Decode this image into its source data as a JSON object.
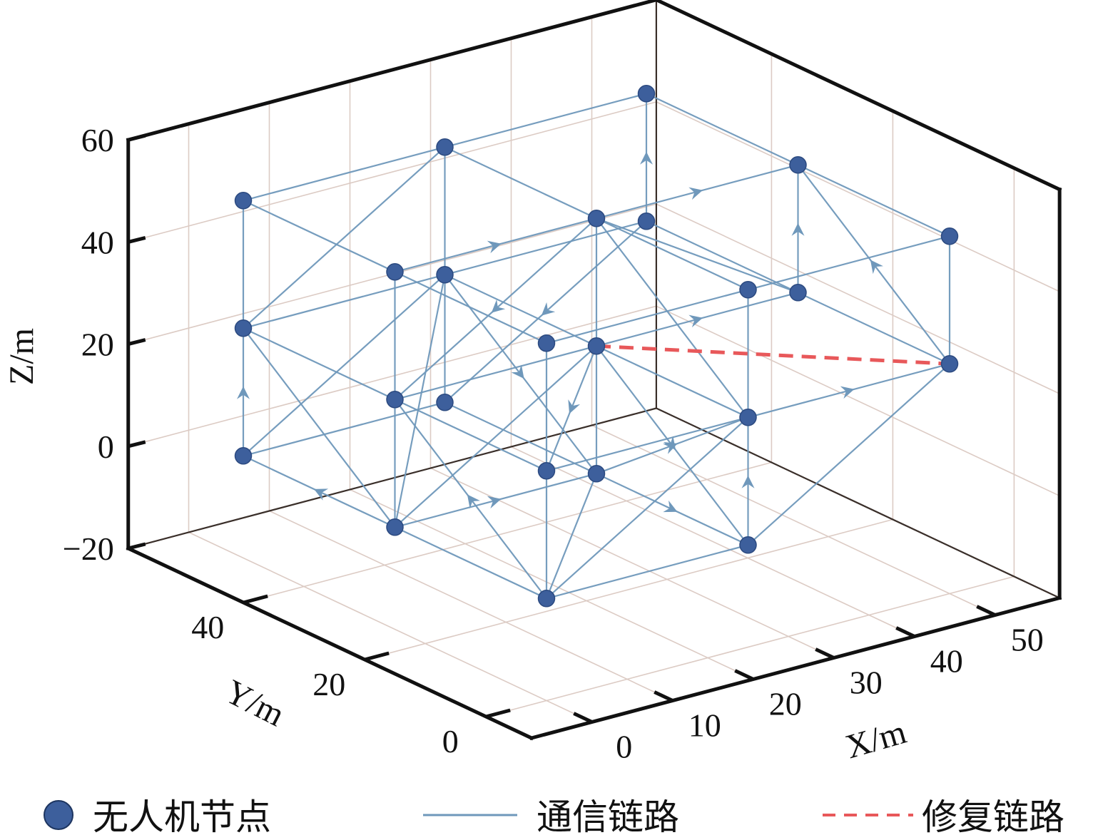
{
  "chart_data": {
    "type": "scatter",
    "projection": "3d",
    "xlabel": "X/m",
    "ylabel": "Y/m",
    "zlabel": "Z/m",
    "xlim": [
      -7.5,
      58
    ],
    "ylim": [
      -7.5,
      59
    ],
    "zlim": [
      -20,
      60
    ],
    "xticks": [
      0,
      10,
      20,
      30,
      40,
      50
    ],
    "yticks": [
      0,
      20,
      40
    ],
    "zticks": [
      -20,
      0,
      20,
      40,
      60
    ],
    "zticklabels": [
      "−20",
      "0",
      "20",
      "40",
      "60"
    ],
    "grid": true,
    "legend_position": "bottom",
    "legend": [
      {
        "label": "无人机节点",
        "kind": "marker"
      },
      {
        "label": "通信链路",
        "kind": "line"
      },
      {
        "label": "修复链路",
        "kind": "dashed"
      }
    ],
    "colors": {
      "node": "#3d5f9c",
      "link": "#6f98bb",
      "repair": "#e8585a",
      "grid": "#dccbc4",
      "axis": "#111111"
    },
    "nodes": [
      [
        0,
        0,
        0
      ],
      [
        25,
        0,
        0
      ],
      [
        0,
        25,
        0
      ],
      [
        25,
        25,
        0
      ],
      [
        0,
        50,
        0
      ],
      [
        25,
        50,
        0
      ],
      [
        0,
        0,
        25
      ],
      [
        25,
        0,
        25
      ],
      [
        50,
        0,
        25
      ],
      [
        0,
        25,
        25
      ],
      [
        25,
        25,
        25
      ],
      [
        50,
        25,
        25
      ],
      [
        0,
        50,
        25
      ],
      [
        25,
        50,
        25
      ],
      [
        50,
        50,
        25
      ],
      [
        0,
        0,
        50
      ],
      [
        25,
        0,
        50
      ],
      [
        50,
        0,
        50
      ],
      [
        0,
        25,
        50
      ],
      [
        25,
        25,
        50
      ],
      [
        50,
        25,
        50
      ],
      [
        0,
        50,
        50
      ],
      [
        25,
        50,
        50
      ],
      [
        50,
        50,
        50
      ]
    ],
    "links": [
      [
        0,
        6,
        0
      ],
      [
        6,
        15,
        0
      ],
      [
        1,
        7,
        1
      ],
      [
        7,
        16,
        0
      ],
      [
        2,
        9,
        0
      ],
      [
        9,
        18,
        0
      ],
      [
        3,
        10,
        0
      ],
      [
        10,
        19,
        0
      ],
      [
        4,
        12,
        1
      ],
      [
        12,
        21,
        0
      ],
      [
        5,
        13,
        0
      ],
      [
        13,
        22,
        0
      ],
      [
        8,
        17,
        0
      ],
      [
        11,
        20,
        1
      ],
      [
        14,
        23,
        1
      ],
      [
        2,
        4,
        1
      ],
      [
        4,
        5,
        0
      ],
      [
        2,
        3,
        1
      ],
      [
        2,
        0,
        0
      ],
      [
        0,
        1,
        0
      ],
      [
        3,
        1,
        1
      ],
      [
        5,
        3,
        0
      ],
      [
        12,
        9,
        0
      ],
      [
        12,
        13,
        0
      ],
      [
        9,
        10,
        0
      ],
      [
        13,
        14,
        0
      ],
      [
        10,
        11,
        1
      ],
      [
        13,
        10,
        0
      ],
      [
        14,
        11,
        0
      ],
      [
        11,
        8,
        0
      ],
      [
        9,
        6,
        0
      ],
      [
        6,
        7,
        0
      ],
      [
        7,
        8,
        1
      ],
      [
        10,
        7,
        0
      ],
      [
        21,
        22,
        0
      ],
      [
        22,
        23,
        0
      ],
      [
        23,
        20,
        0
      ],
      [
        20,
        17,
        0
      ],
      [
        21,
        18,
        0
      ],
      [
        22,
        19,
        0
      ],
      [
        18,
        19,
        1
      ],
      [
        19,
        20,
        1
      ],
      [
        19,
        16,
        0
      ],
      [
        16,
        17,
        0
      ],
      [
        18,
        15,
        0
      ],
      [
        15,
        16,
        0
      ],
      [
        22,
        12,
        0
      ],
      [
        19,
        9,
        1
      ],
      [
        12,
        2,
        0
      ],
      [
        4,
        13,
        0
      ],
      [
        2,
        13,
        0
      ],
      [
        2,
        10,
        0
      ],
      [
        0,
        9,
        1
      ],
      [
        0,
        3,
        0
      ],
      [
        0,
        7,
        0
      ],
      [
        1,
        8,
        0
      ],
      [
        10,
        1,
        1
      ],
      [
        10,
        6,
        1
      ],
      [
        13,
        3,
        1
      ],
      [
        14,
        5,
        1
      ],
      [
        19,
        7,
        0
      ],
      [
        19,
        11,
        0
      ],
      [
        8,
        20,
        1
      ],
      [
        3,
        7,
        1
      ]
    ],
    "repair_links": [
      [
        10,
        8
      ]
    ]
  }
}
